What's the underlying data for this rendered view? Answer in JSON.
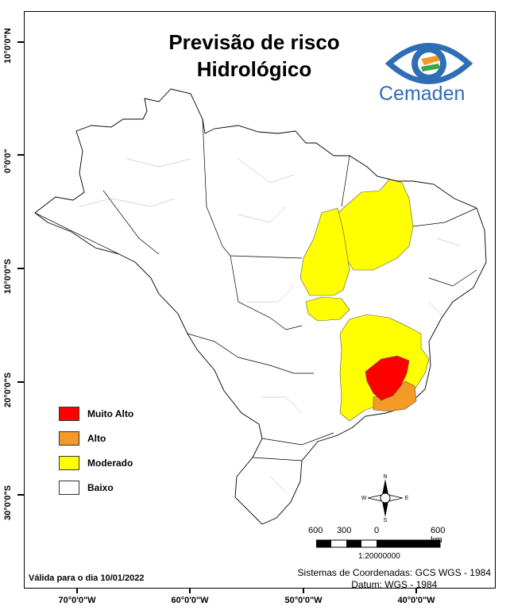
{
  "title_line1": "Previsão de risco",
  "title_line2": "Hidrológico",
  "logo_text": "Cemaden",
  "lat_labels": [
    "10°0'0\"N",
    "0°0'0\"",
    "10°0'0\"S",
    "20°0'0\"S",
    "30°0'0\"S"
  ],
  "lon_labels": [
    "70°0'0\"W",
    "60°0'0\"W",
    "50°0'0\"W",
    "40°0'0\"W"
  ],
  "legend": [
    {
      "label": "Muito Alto",
      "color": "#ff0000"
    },
    {
      "label": "Alto",
      "color": "#f39a27"
    },
    {
      "label": "Moderado",
      "color": "#ffff00"
    },
    {
      "label": "Baixo",
      "color": "#ffffff"
    }
  ],
  "compass": {
    "n": "N",
    "s": "S",
    "e": "E",
    "w": "W"
  },
  "scale": {
    "labels": [
      "600",
      "300",
      "0",
      "600 km"
    ],
    "ratio": "1:20000000"
  },
  "valid_text": "Válida para o dia 10/01/2022",
  "coord_line1": "Sistemas de Coordenadas: GCS WGS - 1984",
  "coord_line2": "Datum: WGS - 1984"
}
